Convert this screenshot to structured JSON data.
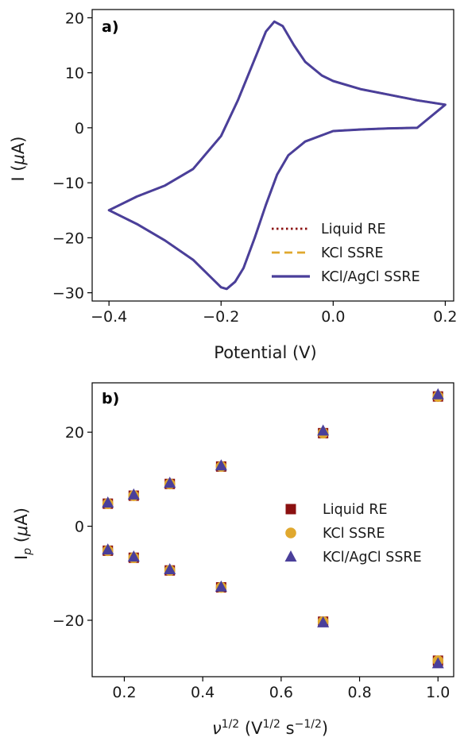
{
  "colors": {
    "liquid_re": "#8b1010",
    "kcl_ssre": "#e0a82e",
    "kcl_agcl_ssre": "#4a3f9a"
  },
  "chart_data": [
    {
      "type": "line",
      "panel_label": "a)",
      "xlabel": "Potential (V)",
      "ylabel": "I (μA)",
      "xlim": [
        -0.43,
        0.215
      ],
      "ylim": [
        -31.5,
        21.5
      ],
      "xticks": [
        -0.4,
        -0.2,
        0.0,
        0.2
      ],
      "xtick_labels": [
        "−0.4",
        "−0.2",
        "0.0",
        "0.2"
      ],
      "yticks": [
        -30,
        -20,
        -10,
        0,
        10,
        20
      ],
      "ytick_labels": [
        "−30",
        "−20",
        "−10",
        "0",
        "10",
        "20"
      ],
      "grid": false,
      "legend_position": "lower-right",
      "series": [
        {
          "name": "Liquid RE",
          "style": "dotted",
          "color_key": "liquid_re",
          "forward_x": [
            -0.4,
            -0.35,
            -0.3,
            -0.25,
            -0.2,
            -0.17,
            -0.14,
            -0.12,
            -0.105,
            -0.09,
            -0.07,
            -0.05,
            -0.02,
            0.0,
            0.05,
            0.1,
            0.15,
            0.2
          ],
          "forward_y": [
            -15,
            -12.5,
            -10.5,
            -7.5,
            -1.5,
            5,
            12.5,
            17.5,
            19.3,
            18.5,
            15,
            12,
            9.5,
            8.5,
            7,
            6,
            5,
            4.2
          ],
          "reverse_x": [
            0.2,
            0.15,
            0.1,
            0.05,
            0.0,
            -0.05,
            -0.08,
            -0.1,
            -0.12,
            -0.14,
            -0.16,
            -0.175,
            -0.19,
            -0.2,
            -0.22,
            -0.25,
            -0.3,
            -0.35,
            -0.4
          ],
          "reverse_y": [
            0.1,
            0,
            -0.1,
            -0.3,
            -0.6,
            -2.5,
            -5,
            -8.5,
            -14,
            -20,
            -25.5,
            -28,
            -29.3,
            -29,
            -27,
            -24,
            -20.5,
            -17.5,
            -15
          ]
        },
        {
          "name": "KCl SSRE",
          "style": "dashed",
          "color_key": "kcl_ssre",
          "forward_x": [
            -0.4,
            -0.35,
            -0.3,
            -0.25,
            -0.2,
            -0.17,
            -0.14,
            -0.12,
            -0.105,
            -0.09,
            -0.07,
            -0.05,
            -0.02,
            0.0,
            0.05,
            0.1,
            0.15,
            0.2
          ],
          "forward_y": [
            -15,
            -12.5,
            -10.5,
            -7.5,
            -1.5,
            5,
            12.5,
            17.5,
            19.3,
            18.5,
            15,
            12,
            9.5,
            8.5,
            7,
            6,
            5,
            4.2
          ],
          "reverse_x": [
            0.2,
            0.15,
            0.1,
            0.05,
            0.0,
            -0.05,
            -0.08,
            -0.1,
            -0.12,
            -0.14,
            -0.16,
            -0.175,
            -0.19,
            -0.2,
            -0.22,
            -0.25,
            -0.3,
            -0.35,
            -0.4
          ],
          "reverse_y": [
            0.1,
            0,
            -0.1,
            -0.3,
            -0.6,
            -2.5,
            -5,
            -8.5,
            -14,
            -20,
            -25.5,
            -28,
            -29.3,
            -29,
            -27,
            -24,
            -20.5,
            -17.5,
            -15
          ]
        },
        {
          "name": "KCl/AgCl SSRE",
          "style": "solid",
          "color_key": "kcl_agcl_ssre",
          "forward_x": [
            -0.4,
            -0.35,
            -0.3,
            -0.25,
            -0.2,
            -0.17,
            -0.14,
            -0.12,
            -0.105,
            -0.09,
            -0.07,
            -0.05,
            -0.02,
            0.0,
            0.05,
            0.1,
            0.15,
            0.2
          ],
          "forward_y": [
            -15,
            -12.5,
            -10.5,
            -7.5,
            -1.5,
            5,
            12.5,
            17.5,
            19.3,
            18.5,
            15,
            12,
            9.5,
            8.5,
            7,
            6,
            5,
            4.2
          ],
          "reverse_x": [
            0.2,
            0.15,
            0.1,
            0.05,
            0.0,
            -0.05,
            -0.08,
            -0.1,
            -0.12,
            -0.14,
            -0.16,
            -0.175,
            -0.19,
            -0.2,
            -0.22,
            -0.25,
            -0.3,
            -0.35,
            -0.4
          ],
          "reverse_y": [
            0.1,
            0,
            -0.1,
            -0.3,
            -0.6,
            -2.5,
            -5,
            -8.5,
            -14,
            -20,
            -25.5,
            -28,
            -29.3,
            -29,
            -27,
            -24,
            -20.5,
            -17.5,
            -15
          ]
        }
      ]
    },
    {
      "type": "scatter",
      "panel_label": "b)",
      "xlabel": "ν1/2 (V1/2 s−1/2)",
      "ylabel": "Ip (μA)",
      "xlim": [
        0.118,
        1.04
      ],
      "ylim": [
        -32,
        30.5
      ],
      "xticks": [
        0.2,
        0.4,
        0.6,
        0.8,
        1.0
      ],
      "xtick_labels": [
        "0.2",
        "0.4",
        "0.6",
        "0.8",
        "1.0"
      ],
      "yticks": [
        -20,
        0,
        20
      ],
      "ytick_labels": [
        "−20",
        "0",
        "20"
      ],
      "grid": false,
      "legend_position": "center-right",
      "x": [
        0.158,
        0.224,
        0.316,
        0.447,
        0.707,
        1.0
      ],
      "series": [
        {
          "name": "Liquid RE",
          "marker": "square",
          "color_key": "liquid_re",
          "anodic": [
            4.8,
            6.5,
            9.0,
            12.7,
            19.8,
            27.6
          ],
          "cathodic": [
            -5.2,
            -6.7,
            -9.4,
            -13.0,
            -20.3,
            -28.6
          ]
        },
        {
          "name": "KCl SSRE",
          "marker": "circle",
          "color_key": "kcl_ssre",
          "anodic": [
            4.8,
            6.5,
            9.0,
            12.7,
            19.8,
            27.6
          ],
          "cathodic": [
            -5.2,
            -6.7,
            -9.4,
            -13.0,
            -20.3,
            -28.6
          ]
        },
        {
          "name": "KCl/AgCl SSRE",
          "marker": "triangle",
          "color_key": "kcl_agcl_ssre",
          "anodic": [
            5.0,
            6.7,
            9.2,
            12.9,
            20.3,
            28.0
          ],
          "cathodic": [
            -5.0,
            -6.5,
            -9.2,
            -12.9,
            -20.5,
            -29.2
          ]
        }
      ]
    }
  ]
}
